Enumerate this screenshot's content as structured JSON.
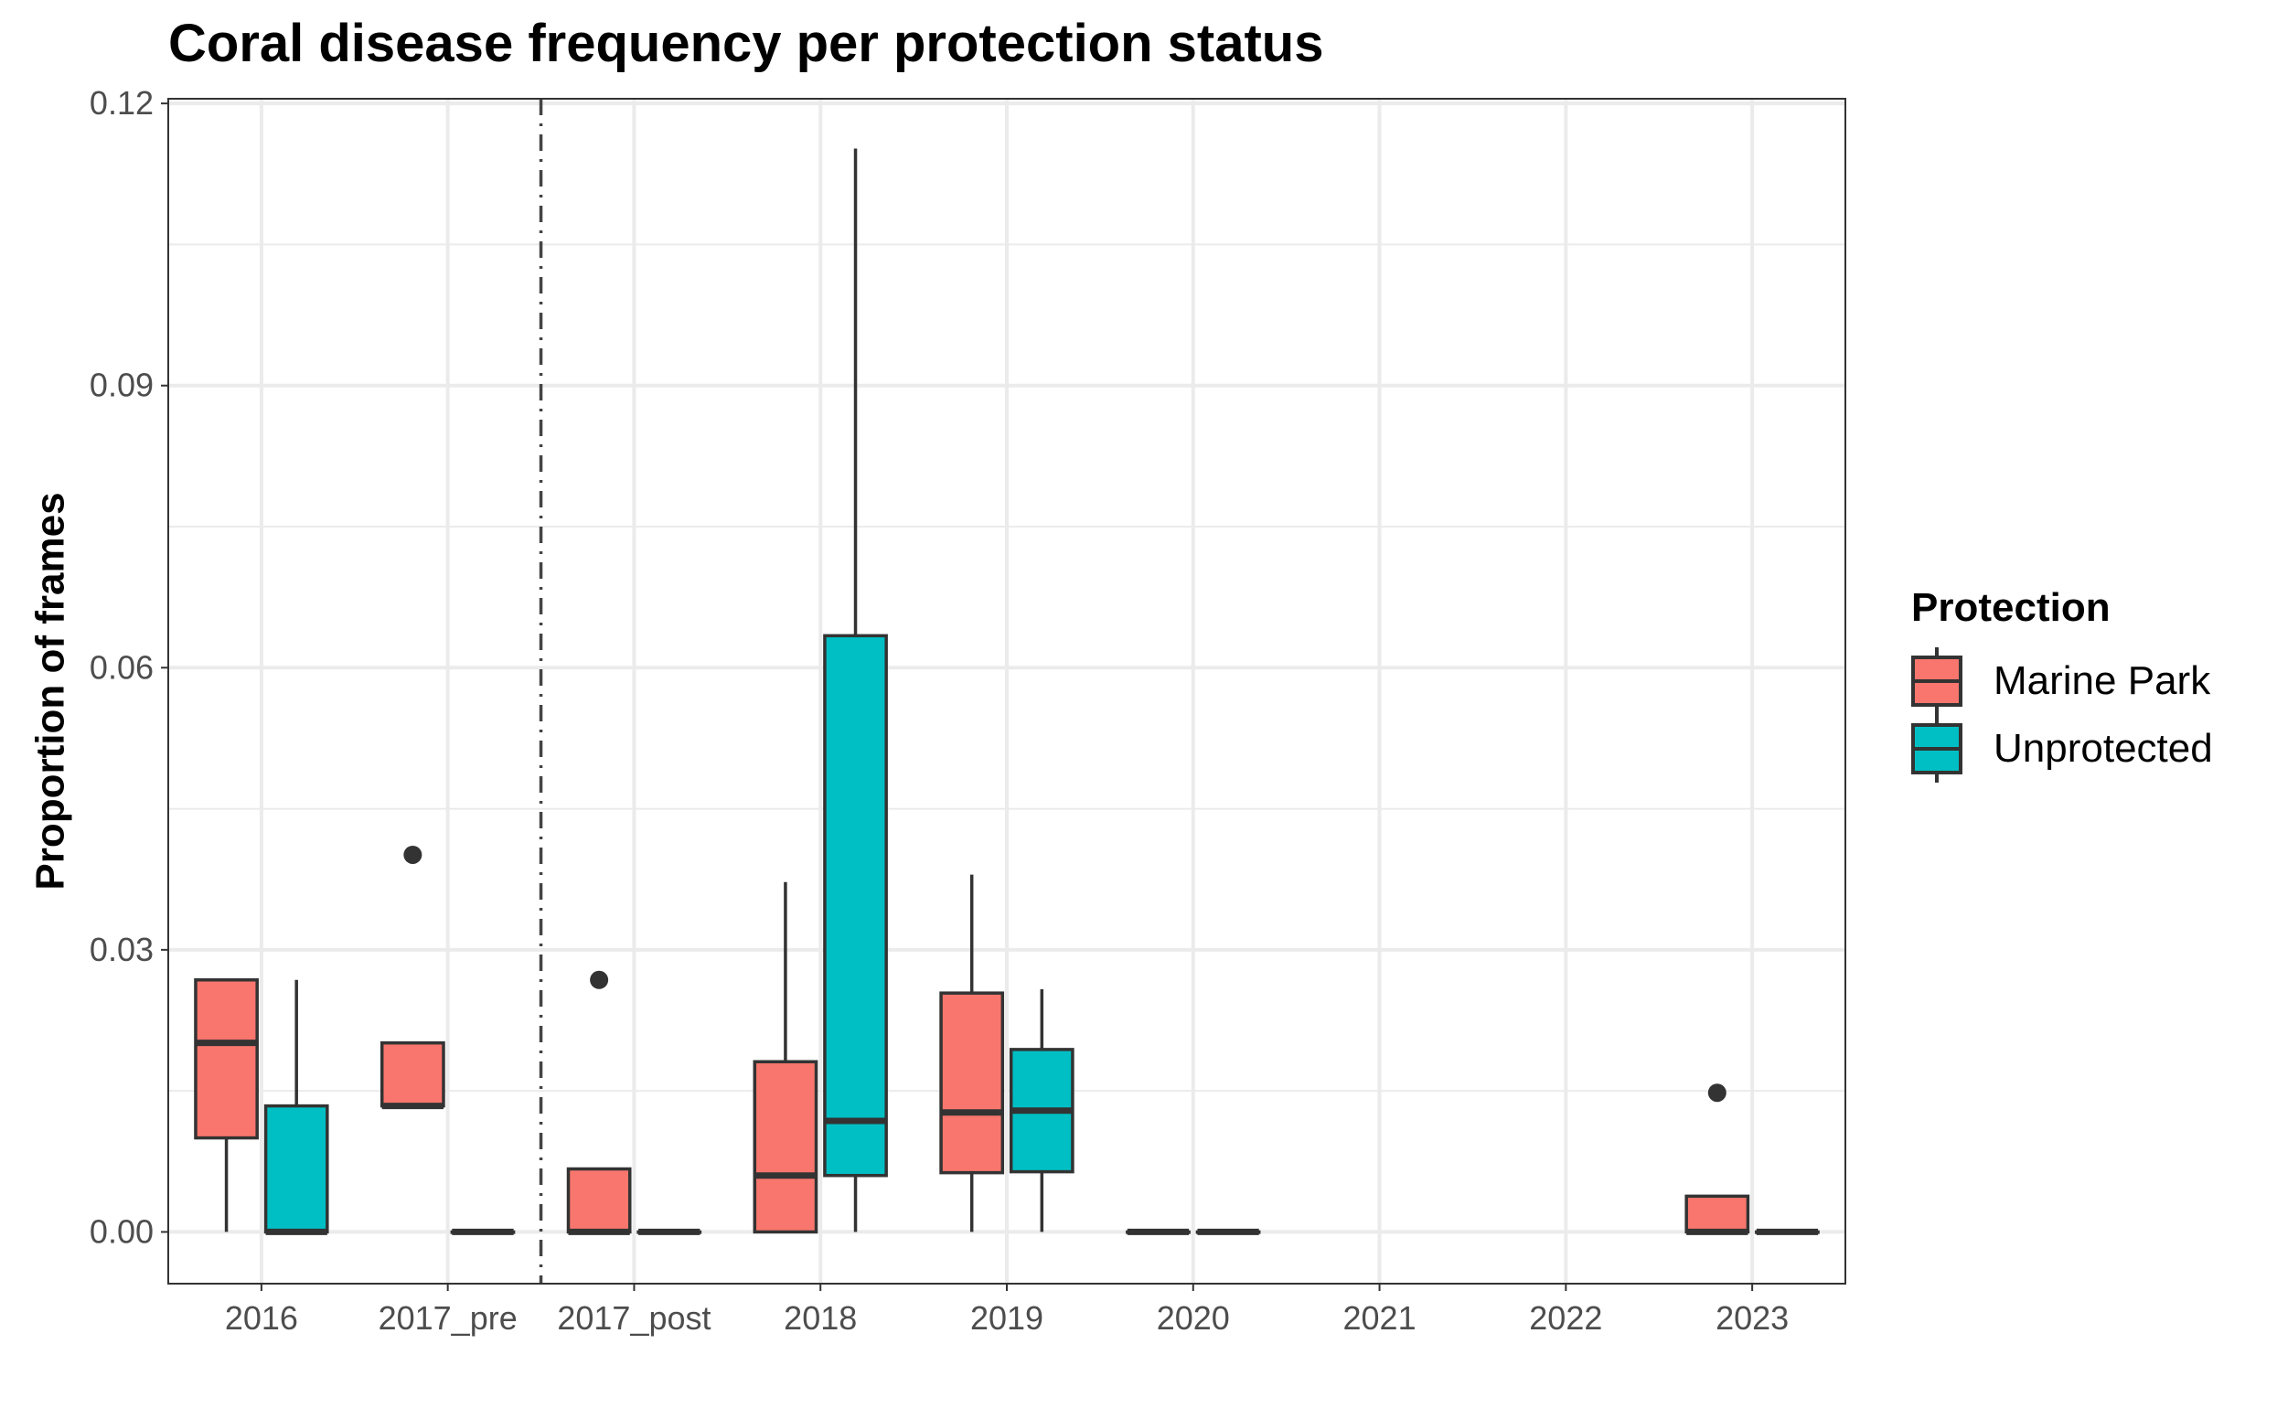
{
  "chart_data": {
    "type": "box",
    "title": "Coral disease frequency per protection status",
    "xlabel": "",
    "ylabel": "Proportion of frames",
    "ylim": [
      -0.0055,
      0.1205
    ],
    "yticks": [
      "0.00",
      "0.03",
      "0.06",
      "0.09",
      "0.12"
    ],
    "ytick_values": [
      0.0,
      0.03,
      0.06,
      0.09,
      0.12
    ],
    "categories": [
      "2016",
      "2017_pre",
      "2017_post",
      "2018",
      "2019",
      "2020",
      "2021",
      "2022",
      "2023"
    ],
    "grid": true,
    "legend_position": "right",
    "vertical_line": {
      "between": [
        "2017_pre",
        "2017_post"
      ],
      "style": "dashdot"
    },
    "legend": {
      "title": "Protection",
      "items": [
        {
          "label": "Marine Park",
          "color": "#F8766D"
        },
        {
          "label": "Unprotected",
          "color": "#00BFC4"
        }
      ]
    },
    "series": [
      {
        "name": "Marine Park",
        "color": "#F8766D",
        "boxes": [
          {
            "category": "2016",
            "min": 0.0,
            "q1": 0.01,
            "median": 0.0201,
            "q3": 0.0268,
            "max": 0.0268,
            "outliers": []
          },
          {
            "category": "2017_pre",
            "min": 0.0134,
            "q1": 0.0134,
            "median": 0.0134,
            "q3": 0.0201,
            "max": 0.0201,
            "outliers": [
              0.0401
            ]
          },
          {
            "category": "2017_post",
            "min": 0.0,
            "q1": 0.0,
            "median": 0.0,
            "q3": 0.0067,
            "max": 0.0067,
            "outliers": [
              0.0268
            ]
          },
          {
            "category": "2018",
            "min": 0.0,
            "q1": 0.0,
            "median": 0.006,
            "q3": 0.0181,
            "max": 0.0372,
            "outliers": []
          },
          {
            "category": "2019",
            "min": 0.0,
            "q1": 0.0063,
            "median": 0.0127,
            "q3": 0.0254,
            "max": 0.038,
            "outliers": []
          },
          {
            "category": "2020",
            "min": 0.0,
            "q1": 0.0,
            "median": 0.0,
            "q3": 0.0,
            "max": 0.0,
            "outliers": []
          },
          {
            "category": "2023",
            "min": 0.0,
            "q1": 0.0,
            "median": 0.0,
            "q3": 0.0038,
            "max": 0.0038,
            "outliers": [
              0.0148
            ]
          }
        ]
      },
      {
        "name": "Unprotected",
        "color": "#00BFC4",
        "boxes": [
          {
            "category": "2016",
            "min": 0.0,
            "q1": 0.0,
            "median": 0.0,
            "q3": 0.0134,
            "max": 0.0268,
            "outliers": []
          },
          {
            "category": "2017_pre",
            "min": 0.0,
            "q1": 0.0,
            "median": 0.0,
            "q3": 0.0,
            "max": 0.0,
            "outliers": []
          },
          {
            "category": "2017_post",
            "min": 0.0,
            "q1": 0.0,
            "median": 0.0,
            "q3": 0.0,
            "max": 0.0,
            "outliers": []
          },
          {
            "category": "2018",
            "min": 0.0,
            "q1": 0.006,
            "median": 0.0118,
            "q3": 0.0634,
            "max": 0.1152,
            "outliers": []
          },
          {
            "category": "2019",
            "min": 0.0,
            "q1": 0.0064,
            "median": 0.0129,
            "q3": 0.0194,
            "max": 0.0258,
            "outliers": []
          },
          {
            "category": "2020",
            "min": 0.0,
            "q1": 0.0,
            "median": 0.0,
            "q3": 0.0,
            "max": 0.0,
            "outliers": []
          },
          {
            "category": "2023",
            "min": 0.0,
            "q1": 0.0,
            "median": 0.0,
            "q3": 0.0,
            "max": 0.0,
            "outliers": []
          }
        ]
      }
    ]
  }
}
